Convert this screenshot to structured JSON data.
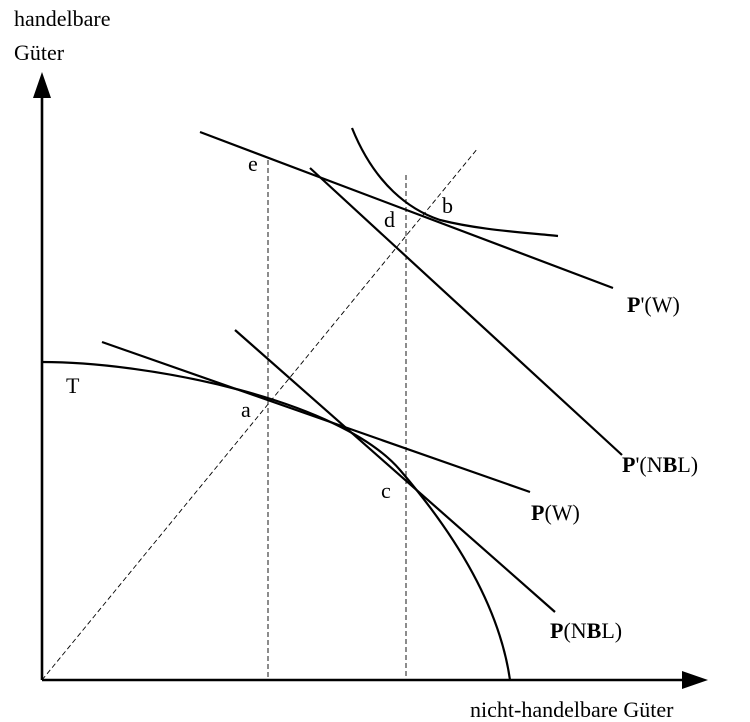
{
  "axes": {
    "y_label_line1": "handelbare",
    "y_label_line2": "Güter",
    "x_label": "nicht-handelbare Güter"
  },
  "points": {
    "a": "a",
    "b": "b",
    "c": "c",
    "d": "d",
    "e": "e",
    "T": "T"
  },
  "lines": {
    "pw_prime": {
      "prefix": "P",
      "mark": "'",
      "rest": "(W)"
    },
    "pnbl_prime": {
      "prefix": "P",
      "mark": "'",
      "pre": "(N",
      "bold_letter": "B",
      "post": "L)"
    },
    "pw": {
      "prefix": "P",
      "rest": "(W)"
    },
    "pnbl": {
      "prefix": "P",
      "pre": "(N",
      "bold_letter": "B",
      "post": "L)"
    }
  }
}
